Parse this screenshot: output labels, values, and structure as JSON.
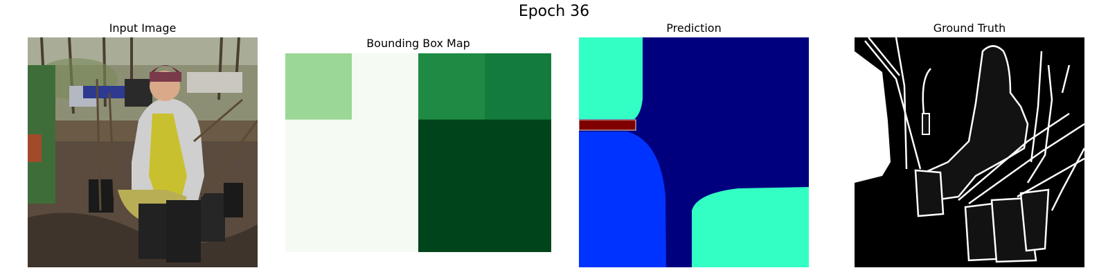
{
  "figure": {
    "title": "Epoch 36"
  },
  "panels": [
    {
      "title": "Input Image",
      "kind": "photo"
    },
    {
      "title": "Bounding Box Map",
      "kind": "heatmap",
      "grid": [
        [
          "#9bd795",
          "#f5fbf3",
          "#1e8a44",
          "#137c3c"
        ],
        [
          "#f5fbf3",
          "#f5fbf3",
          "#00441b",
          "#00441b"
        ],
        [
          "#f5fbf3",
          "#f5fbf3",
          "#00441b",
          "#00441b"
        ]
      ]
    },
    {
      "title": "Prediction",
      "kind": "segmentation",
      "colors": {
        "background": "#00007f",
        "cyan": "#33ffc4",
        "blue": "#0033ff",
        "red": "#7f0000",
        "outline": "#e8e8d0"
      }
    },
    {
      "title": "Ground Truth",
      "kind": "mask",
      "colors": {
        "background": "#000000",
        "fill": "#121212",
        "outline": "#ffffff"
      }
    }
  ]
}
